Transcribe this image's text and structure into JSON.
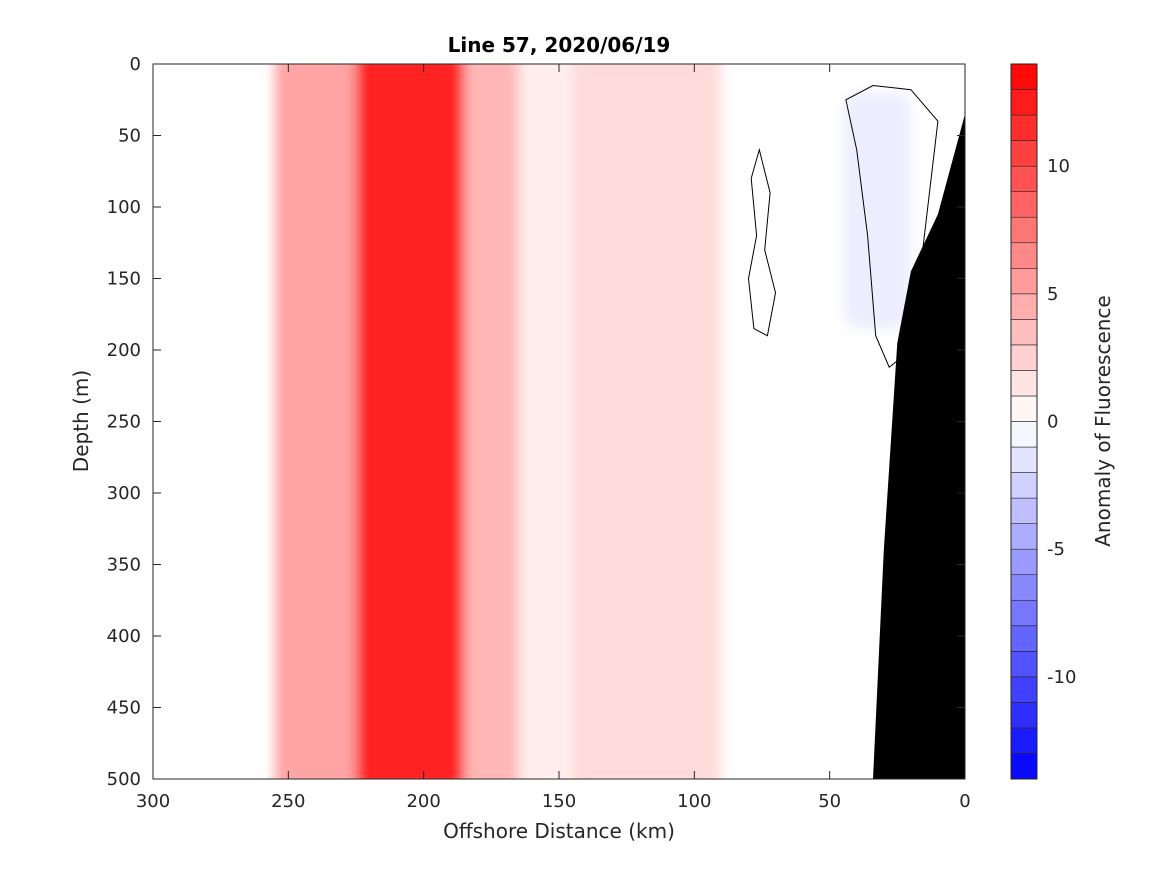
{
  "chart_data": {
    "type": "heatmap",
    "subtype": "filled-contour",
    "title": "Line 57, 2020/06/19",
    "xlabel": "Offshore Distance (km)",
    "ylabel": "Depth (m)",
    "colorbar_label": "Anomaly of Fluorescence",
    "xlim": [
      300,
      0
    ],
    "ylim": [
      0,
      500
    ],
    "x_reversed": true,
    "y_reversed": true,
    "x_ticks": [
      300,
      250,
      200,
      150,
      100,
      50,
      0
    ],
    "y_ticks": [
      0,
      50,
      100,
      150,
      200,
      250,
      300,
      350,
      400,
      450,
      500
    ],
    "colorbar_ticks": [
      10,
      5,
      0,
      -5,
      -10
    ],
    "colorbar_range": [
      -14,
      14
    ],
    "colorbar_levels": [
      -14,
      -13,
      -12,
      -11,
      -10,
      -9,
      -8,
      -7,
      -6,
      -5,
      -4,
      -3,
      -2,
      -1,
      0,
      1,
      2,
      3,
      4,
      5,
      6,
      7,
      8,
      9,
      10,
      11,
      12,
      13,
      14
    ],
    "colors": {
      "max": "#ff0000",
      "min": "#0000ff",
      "zero": "#ffffff",
      "bathymetry": "#000000"
    },
    "grid": false,
    "data_extent_x": [
      255,
      0
    ],
    "bands": [
      {
        "x_from": 255,
        "x_to": 225,
        "anomaly": 5
      },
      {
        "x_from": 225,
        "x_to": 185,
        "anomaly": 12
      },
      {
        "x_from": 185,
        "x_to": 165,
        "anomaly": 4
      },
      {
        "x_from": 165,
        "x_to": 145,
        "anomaly": 1
      },
      {
        "x_from": 145,
        "x_to": 90,
        "anomaly": 2
      },
      {
        "x_from": 90,
        "x_to": 50,
        "anomaly": 0
      },
      {
        "x_from": 45,
        "x_to": 20,
        "anomaly": -1
      }
    ],
    "bathymetry_profile": [
      {
        "x": 0,
        "depth": 35
      },
      {
        "x": 10,
        "depth": 105
      },
      {
        "x": 20,
        "depth": 145
      },
      {
        "x": 25,
        "depth": 195
      },
      {
        "x": 30,
        "depth": 340
      },
      {
        "x": 34,
        "depth": 500
      }
    ]
  }
}
